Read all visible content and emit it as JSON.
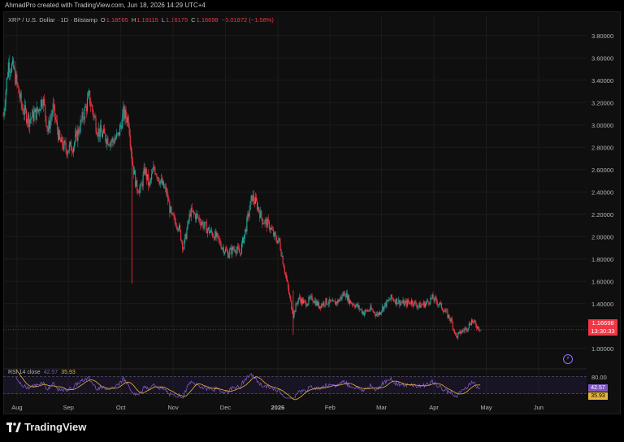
{
  "header": {
    "creator_line": "AhmadPro created with TradingView.com, Jun 18, 2026 14:29 UTC+4"
  },
  "legend": {
    "symbol": "XRP / U.S. Dollar · 1D · Bitstamp",
    "o_key": "O",
    "o_val": "1.18565",
    "h_key": "H",
    "h_val": "1.19115",
    "l_key": "L",
    "l_val": "1.16175",
    "c_key": "C",
    "c_val": "1.16698",
    "change": "−0.01872 (−1.58%)"
  },
  "price_tag": {
    "price": "1.16698",
    "countdown": "13:30:33"
  },
  "rsi": {
    "label": "RSI 14 close",
    "value": "42.57",
    "ma_value": "35.93",
    "scale_top": "80.00"
  },
  "brand": {
    "name": "TradingView"
  },
  "colors": {
    "up": "#26a69a",
    "down": "#f23645",
    "rsi": "#7e57c2",
    "rsi_ma": "#e6b43c",
    "grid": "#1c1c1c"
  },
  "chart_data": {
    "type": "candlestick",
    "y_ticks": [
      "3.80000",
      "3.60000",
      "3.40000",
      "3.20000",
      "3.00000",
      "2.80000",
      "2.60000",
      "2.40000",
      "2.20000",
      "2.00000",
      "1.80000",
      "1.60000",
      "1.40000",
      "1.20000",
      "1.00000"
    ],
    "ylim": [
      0.86,
      3.9
    ],
    "x_ticks": [
      "Aug",
      "Sep",
      "Oct",
      "Nov",
      "Dec",
      "2026",
      "Feb",
      "Mar",
      "Apr",
      "May",
      "Jun"
    ],
    "x_tick_days": [
      16,
      76,
      137,
      198,
      259,
      320,
      381,
      441,
      502,
      563,
      624
    ],
    "xlim": [
      0,
      680
    ],
    "anchors": [
      [
        0,
        3.08
      ],
      [
        6,
        3.55
      ],
      [
        12,
        3.5
      ],
      [
        22,
        3.15
      ],
      [
        30,
        3.05
      ],
      [
        40,
        3.12
      ],
      [
        46,
        3.25
      ],
      [
        52,
        2.95
      ],
      [
        58,
        3.15
      ],
      [
        66,
        2.85
      ],
      [
        74,
        2.78
      ],
      [
        82,
        2.82
      ],
      [
        92,
        3.05
      ],
      [
        100,
        3.25
      ],
      [
        110,
        2.95
      ],
      [
        118,
        2.9
      ],
      [
        126,
        2.85
      ],
      [
        134,
        2.9
      ],
      [
        140,
        3.1
      ],
      [
        146,
        3.05
      ],
      [
        150,
        2.7
      ],
      [
        155,
        2.45
      ],
      [
        160,
        2.42
      ],
      [
        165,
        2.6
      ],
      [
        170,
        2.45
      ],
      [
        176,
        2.62
      ],
      [
        184,
        2.48
      ],
      [
        190,
        2.4
      ],
      [
        196,
        2.18
      ],
      [
        204,
        2.1
      ],
      [
        210,
        1.9
      ],
      [
        218,
        2.22
      ],
      [
        226,
        2.18
      ],
      [
        234,
        2.1
      ],
      [
        240,
        2.05
      ],
      [
        248,
        2.0
      ],
      [
        256,
        1.9
      ],
      [
        262,
        1.85
      ],
      [
        270,
        1.9
      ],
      [
        276,
        1.85
      ],
      [
        282,
        2.05
      ],
      [
        290,
        2.36
      ],
      [
        296,
        2.28
      ],
      [
        302,
        2.15
      ],
      [
        310,
        2.1
      ],
      [
        316,
        2.0
      ],
      [
        322,
        1.95
      ],
      [
        328,
        1.7
      ],
      [
        334,
        1.45
      ],
      [
        338,
        1.3
      ],
      [
        344,
        1.45
      ],
      [
        352,
        1.4
      ],
      [
        360,
        1.45
      ],
      [
        368,
        1.38
      ],
      [
        376,
        1.42
      ],
      [
        384,
        1.4
      ],
      [
        390,
        1.42
      ],
      [
        398,
        1.5
      ],
      [
        404,
        1.42
      ],
      [
        412,
        1.38
      ],
      [
        420,
        1.32
      ],
      [
        428,
        1.35
      ],
      [
        436,
        1.3
      ],
      [
        444,
        1.38
      ],
      [
        452,
        1.45
      ],
      [
        460,
        1.42
      ],
      [
        468,
        1.4
      ],
      [
        476,
        1.42
      ],
      [
        484,
        1.38
      ],
      [
        492,
        1.4
      ],
      [
        500,
        1.45
      ],
      [
        508,
        1.4
      ],
      [
        516,
        1.32
      ],
      [
        522,
        1.25
      ],
      [
        528,
        1.1
      ],
      [
        534,
        1.15
      ],
      [
        540,
        1.18
      ],
      [
        546,
        1.25
      ],
      [
        552,
        1.2
      ],
      [
        556,
        1.17
      ]
    ],
    "spikes": [
      {
        "day": 150,
        "low": 1.58,
        "high": 2.74
      },
      {
        "day": 338,
        "low": 1.12,
        "high": 1.52
      }
    ],
    "current_price": 1.16698,
    "rsi_ylim": [
      20,
      80
    ],
    "rsi_levels": [
      70,
      30
    ]
  }
}
